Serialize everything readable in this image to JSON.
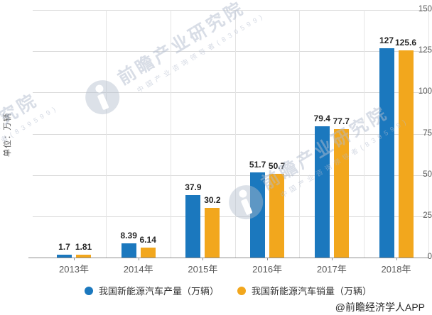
{
  "chart_data": {
    "type": "bar",
    "categories": [
      "2013年",
      "2014年",
      "2015年",
      "2016年",
      "2017年",
      "2018年"
    ],
    "series": [
      {
        "name": "我国新能源汽车产量（万辆）",
        "color": "#1B78BE",
        "values": [
          1.7,
          8.39,
          37.9,
          51.7,
          79.4,
          127
        ]
      },
      {
        "name": "我国新能源汽车销量（万辆）",
        "color": "#F2A71D",
        "values": [
          1.81,
          6.14,
          30.2,
          50.7,
          77.7,
          125.6
        ]
      }
    ],
    "ylabel": "单位：万辆",
    "xlabel": "",
    "title": "",
    "ylim": [
      0,
      150
    ],
    "yticks": [
      0,
      25,
      50,
      75,
      100,
      125,
      150
    ],
    "grid": true,
    "legend_position": "bottom"
  },
  "watermark": {
    "brand": "前瞻产业研究院",
    "tagline": "中国产业咨询领导者(839599)"
  },
  "footer": {
    "copyright": "@前瞻经济学人APP"
  },
  "colors": {
    "production_blue": "#1B78BE",
    "sales_orange": "#F2A71D",
    "gridline": "#DADADA",
    "axis_line": "#8F8F8F",
    "tick_text": "#595959",
    "value_label_text": "#262626",
    "watermark": "#B2BCCD"
  }
}
